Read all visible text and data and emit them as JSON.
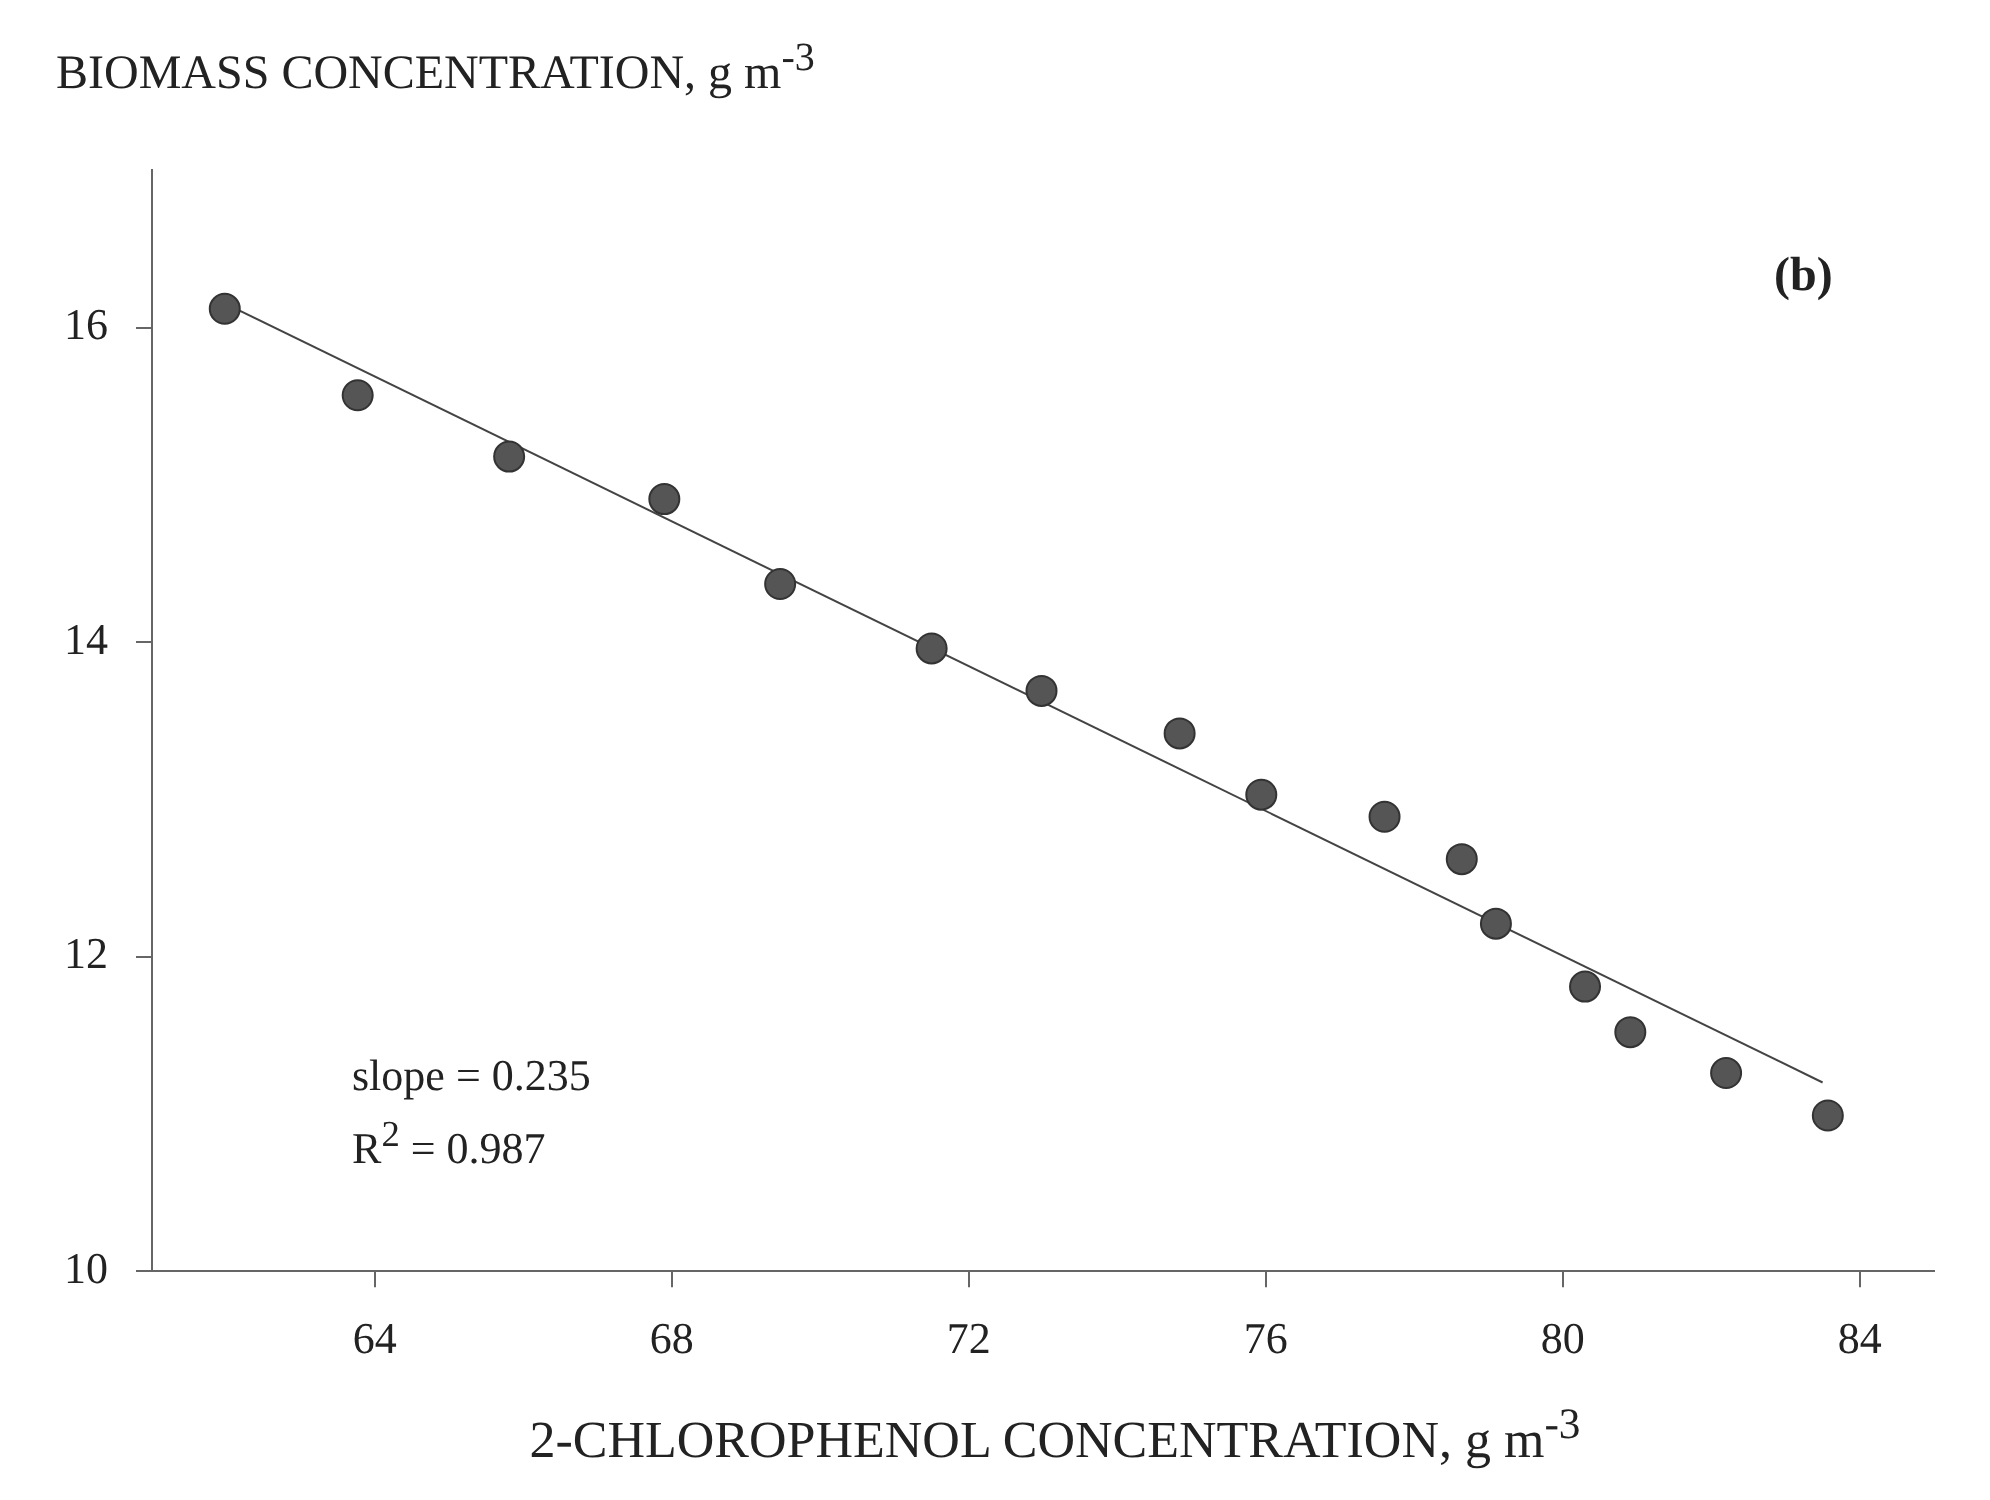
{
  "chart_data": {
    "type": "scatter",
    "xlabel": "2-CHLOROPHENOL CONCENTRATION,  g m$^{-3}$",
    "ylabel": "BIOMASS CONCENTRATION,  g m$^{-3}$",
    "annotations": [
      "(b)",
      "slope = 0.235",
      "R$^{2}$ = 0.987"
    ],
    "xlim": [
      61,
      85
    ],
    "xticks": [
      64,
      68,
      72,
      76,
      80,
      84
    ],
    "ylim": [
      10,
      17
    ],
    "yticks": [
      10,
      12,
      14,
      16
    ],
    "grid": false,
    "legend": false,
    "marker": "circle",
    "series": [
      {
        "type": "scatter",
        "color": "#555555",
        "x": [
          61.98,
          63.77,
          65.81,
          67.9,
          69.46,
          71.5,
          72.98,
          74.84,
          75.94,
          77.6,
          78.64,
          79.1,
          80.3,
          80.91,
          82.2,
          83.57
        ],
        "values": [
          16.12,
          15.57,
          15.18,
          14.91,
          14.37,
          13.96,
          13.69,
          13.42,
          13.03,
          12.89,
          12.62,
          12.21,
          11.81,
          11.52,
          11.26,
          10.99
        ]
      },
      {
        "type": "line",
        "color": "#444444",
        "marker": "none",
        "line_style": "solid",
        "x": [
          62,
          83.5
        ],
        "values": [
          16.15,
          11.2
        ]
      }
    ]
  }
}
